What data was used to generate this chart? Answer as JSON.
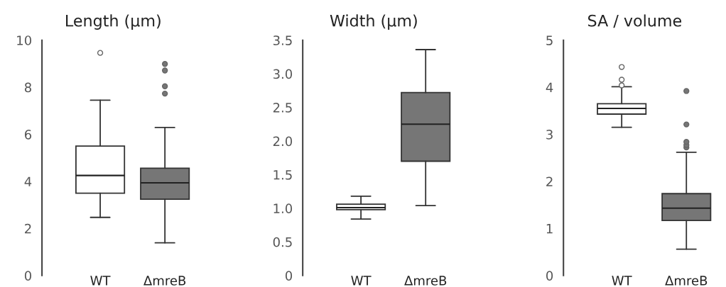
{
  "chart_data": [
    {
      "type": "box",
      "title": "Length (µm)",
      "categories": [
        "WT",
        "ΔmreB"
      ],
      "colors": [
        "#ffffff",
        "#767676"
      ],
      "ylim": [
        0,
        10
      ],
      "yticks": [
        0,
        2,
        4,
        6,
        8,
        10
      ],
      "grid": false,
      "boxes": [
        {
          "low": 2.47,
          "q1": 3.5,
          "median": 4.25,
          "q3": 5.5,
          "high": 7.45,
          "outliers": [
            9.46
          ]
        },
        {
          "low": 1.39,
          "q1": 3.24,
          "median": 3.94,
          "q3": 4.56,
          "high": 6.29,
          "outliers": [
            7.73,
            8.04,
            8.71,
            8.99
          ]
        }
      ]
    },
    {
      "type": "box",
      "title": "Width (µm)",
      "categories": [
        "WT",
        "ΔmreB"
      ],
      "colors": [
        "#ffffff",
        "#767676"
      ],
      "ylim": [
        0,
        3.5
      ],
      "yticks": [
        0,
        {
          "value": 0.5,
          "label": "0.5"
        },
        {
          "value": 1,
          "label": "1.0"
        },
        {
          "value": 1.5,
          "label": "1.5"
        },
        {
          "value": 2,
          "label": "2.0"
        },
        {
          "value": 2.5,
          "label": "2.5"
        },
        {
          "value": 3,
          "label": "3.0"
        },
        {
          "value": 3.5,
          "label": "3.5"
        }
      ],
      "grid": false,
      "boxes": [
        {
          "low": 0.84,
          "q1": 0.98,
          "median": 1.01,
          "q3": 1.06,
          "high": 1.18
        },
        {
          "low": 1.04,
          "q1": 1.7,
          "median": 2.25,
          "q3": 2.72,
          "high": 3.36
        }
      ]
    },
    {
      "type": "box",
      "title": "SA / volume",
      "categories": [
        "WT",
        "ΔmreB"
      ],
      "colors": [
        "#ffffff",
        "#767676"
      ],
      "ylim": [
        0,
        5
      ],
      "yticks": [
        0,
        1,
        2,
        3,
        4,
        5
      ],
      "grid": false,
      "boxes": [
        {
          "low": 3.15,
          "q1": 3.43,
          "median": 3.55,
          "q3": 3.65,
          "high": 4.01,
          "outliers": [
            4.04,
            4.16,
            4.43
          ]
        },
        {
          "low": 0.56,
          "q1": 1.17,
          "median": 1.43,
          "q3": 1.74,
          "high": 2.62,
          "outliers": [
            2.72,
            2.77,
            2.84,
            3.21,
            3.92
          ]
        }
      ]
    }
  ]
}
